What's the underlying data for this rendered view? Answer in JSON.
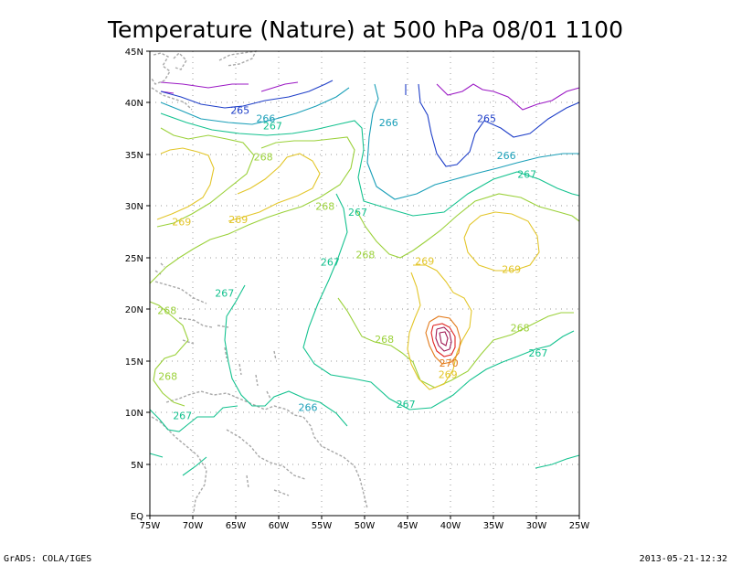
{
  "title": "Temperature (Nature) at 500 hPa 08/01 1100",
  "footer_left": "GrADS: COLA/IGES",
  "footer_right": "2013-05-21-12:32",
  "lon_ticks": [
    "75W",
    "70W",
    "65W",
    "60W",
    "55W",
    "50W",
    "45W",
    "40W",
    "35W",
    "30W",
    "25W"
  ],
  "lat_ticks": [
    "EQ",
    "5N",
    "10N",
    "15N",
    "20N",
    "25N",
    "30N",
    "35N",
    "40N",
    "45N"
  ],
  "extent": {
    "lon_min": -75,
    "lon_max": -25,
    "lat_min": 0,
    "lat_max": 45
  },
  "colors": {
    "c264": "#9b18c4",
    "c265": "#1e3ec8",
    "c266": "#1a9fb8",
    "c267": "#14c28f",
    "c268": "#9bd13a",
    "c269": "#e3c62a",
    "c270": "#e37b1c",
    "c271": "#e0241f",
    "c272": "#a01a55",
    "coast": "#a8a8a8"
  },
  "contour_labels": [
    {
      "text": "265",
      "lon": -64.5,
      "lat": 39.2,
      "color": "c265"
    },
    {
      "text": "266",
      "lon": -61.5,
      "lat": 38.4,
      "color": "c266"
    },
    {
      "text": "267",
      "lon": -60.7,
      "lat": 37.7,
      "color": "c267"
    },
    {
      "text": "266",
      "lon": -47.2,
      "lat": 38.0,
      "color": "c266"
    },
    {
      "text": "265",
      "lon": -35.8,
      "lat": 38.4,
      "color": "c265"
    },
    {
      "text": "268",
      "lon": -61.8,
      "lat": 34.7,
      "color": "c268"
    },
    {
      "text": "266",
      "lon": -33.5,
      "lat": 34.8,
      "color": "c266"
    },
    {
      "text": "267",
      "lon": -31.1,
      "lat": 33.0,
      "color": "c267"
    },
    {
      "text": "268",
      "lon": -54.6,
      "lat": 29.9,
      "color": "c268"
    },
    {
      "text": "267",
      "lon": -50.8,
      "lat": 29.3,
      "color": "c267"
    },
    {
      "text": "269",
      "lon": -71.3,
      "lat": 28.4,
      "color": "c269"
    },
    {
      "text": "269",
      "lon": -64.7,
      "lat": 28.6,
      "color": "c269"
    },
    {
      "text": "268",
      "lon": -49.9,
      "lat": 25.2,
      "color": "c268"
    },
    {
      "text": "267",
      "lon": -54.0,
      "lat": 24.5,
      "color": "c267"
    },
    {
      "text": "269",
      "lon": -43.0,
      "lat": 24.6,
      "color": "c269"
    },
    {
      "text": "269",
      "lon": -32.9,
      "lat": 23.8,
      "color": "c269"
    },
    {
      "text": "267",
      "lon": -66.3,
      "lat": 21.5,
      "color": "c267"
    },
    {
      "text": "268",
      "lon": -73.0,
      "lat": 19.8,
      "color": "c268"
    },
    {
      "text": "268",
      "lon": -47.7,
      "lat": 17.0,
      "color": "c268"
    },
    {
      "text": "268",
      "lon": -31.9,
      "lat": 18.1,
      "color": "c268"
    },
    {
      "text": "267",
      "lon": -29.8,
      "lat": 15.7,
      "color": "c267"
    },
    {
      "text": "270",
      "lon": -40.2,
      "lat": 14.7,
      "color": "c270"
    },
    {
      "text": "269",
      "lon": -40.3,
      "lat": 13.6,
      "color": "c269"
    },
    {
      "text": "268",
      "lon": -72.9,
      "lat": 13.4,
      "color": "c268"
    },
    {
      "text": "266",
      "lon": -56.6,
      "lat": 10.4,
      "color": "c266"
    },
    {
      "text": "267",
      "lon": -45.2,
      "lat": 10.7,
      "color": "c267"
    },
    {
      "text": "267",
      "lon": -71.2,
      "lat": 9.6,
      "color": "c267"
    }
  ]
}
